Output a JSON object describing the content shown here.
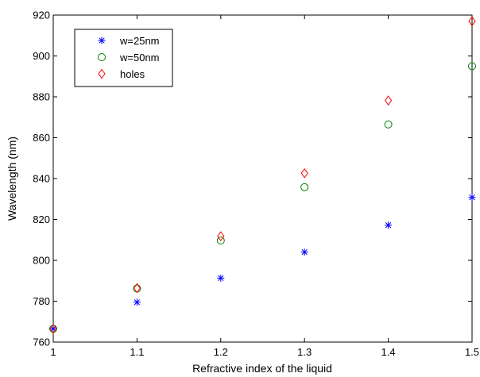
{
  "chart_data": {
    "type": "scatter",
    "title": "",
    "xlabel": "Refractive index of the liquid",
    "ylabel": "Wavelength (nm)",
    "xlim": [
      1,
      1.5
    ],
    "ylim": [
      760,
      920
    ],
    "xticks": [
      "1",
      "1.1",
      "1.2",
      "1.3",
      "1.4",
      "1.5"
    ],
    "yticks": [
      "760",
      "780",
      "800",
      "820",
      "840",
      "860",
      "880",
      "900",
      "920"
    ],
    "grid": false,
    "legend_position": "top-left",
    "series": [
      {
        "name": "w=25nm",
        "marker": "asterisk",
        "color": "#0000ff",
        "x": [
          1.0,
          1.1,
          1.2,
          1.3,
          1.4,
          1.5
        ],
        "y": [
          766.5,
          779.5,
          791.3,
          804.0,
          817.2,
          830.8
        ]
      },
      {
        "name": "w=50nm",
        "marker": "circle",
        "color": "#008000",
        "x": [
          1.0,
          1.1,
          1.2,
          1.3,
          1.4,
          1.5
        ],
        "y": [
          766.5,
          786.2,
          809.7,
          835.8,
          866.5,
          895.0
        ]
      },
      {
        "name": "holes",
        "marker": "diamond",
        "color": "#ff0000",
        "x": [
          1.0,
          1.1,
          1.2,
          1.3,
          1.4,
          1.5
        ],
        "y": [
          766.5,
          786.4,
          811.8,
          842.6,
          878.2,
          917.0
        ]
      }
    ]
  }
}
